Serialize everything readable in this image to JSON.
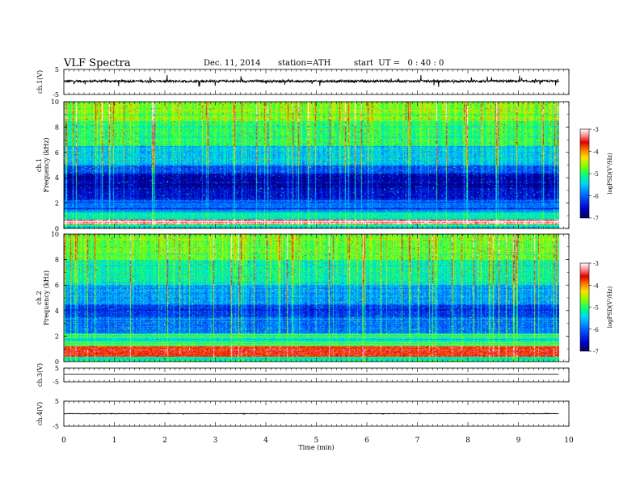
{
  "header": {
    "title": "VLF  Spectra",
    "date": "Dec. 11, 2014",
    "station": "station=ATH",
    "start": "start  UT =   0 : 40 : 0"
  },
  "colors": {
    "spectrum_scale": [
      "#000060",
      "#0000c8",
      "#0050ff",
      "#00b4ff",
      "#00ffd0",
      "#30ff30",
      "#b4ff00",
      "#ffe000",
      "#ff8000",
      "#e00000",
      "#ff9090",
      "#ffffff"
    ]
  },
  "chart_data": [
    {
      "type": "line",
      "panel": "ch1-waveform",
      "ylabel": "ch.1(V)",
      "yticks": [
        "5",
        "-5"
      ],
      "ylim": [
        -5,
        5
      ],
      "xlim": [
        0,
        10
      ],
      "data_end": 9.8,
      "baseline": 0.3,
      "noise_amplitude": 0.9,
      "spike_amplitude": 2.3
    },
    {
      "type": "heatmap",
      "panel": "ch1-spectrogram",
      "ylabel": "ch.1\nFrequency  (kHz)",
      "yticks": [
        "0",
        "2",
        "4",
        "6",
        "8",
        "10"
      ],
      "ylim": [
        0,
        10
      ],
      "xlim": [
        0,
        10
      ],
      "data_end": 9.8,
      "colorbar": {
        "label": "logPSD(V²/Hz)",
        "ticks": [
          "-3",
          "-4",
          "-5",
          "-6",
          "-7"
        ],
        "range": [
          -7,
          -3
        ]
      },
      "bands": [
        {
          "f": [
            0,
            0.3
          ],
          "logpsd": -5.2
        },
        {
          "f": [
            0.3,
            0.7
          ],
          "logpsd": -3.4
        },
        {
          "f": [
            0.7,
            1.3
          ],
          "logpsd": -5.3
        },
        {
          "f": [
            1.3,
            2.2
          ],
          "logpsd": -6.0
        },
        {
          "f": [
            2.2,
            3.0
          ],
          "logpsd": -6.7
        },
        {
          "f": [
            3.0,
            4.3
          ],
          "logpsd": -6.9
        },
        {
          "f": [
            4.3,
            5.0
          ],
          "logpsd": -6.3
        },
        {
          "f": [
            5.0,
            6.5
          ],
          "logpsd": -5.7
        },
        {
          "f": [
            6.5,
            8.5
          ],
          "logpsd": -5.2
        },
        {
          "f": [
            8.5,
            10.0
          ],
          "logpsd": -4.9
        }
      ]
    },
    {
      "type": "heatmap",
      "panel": "ch2-spectrogram",
      "ylabel": "ch.2\nFrequency  (kHz)",
      "yticks": [
        "0",
        "2",
        "4",
        "6",
        "8",
        "10"
      ],
      "ylim": [
        0,
        10
      ],
      "xlim": [
        0,
        10
      ],
      "data_end": 9.8,
      "colorbar": {
        "label": "logPSD(V²/Hz)",
        "ticks": [
          "-3",
          "-4",
          "-5",
          "-6",
          "-7"
        ],
        "range": [
          -7,
          -3
        ]
      },
      "bands": [
        {
          "f": [
            0,
            0.4
          ],
          "logpsd": -5.2
        },
        {
          "f": [
            0.4,
            1.2
          ],
          "logpsd": -3.7
        },
        {
          "f": [
            1.2,
            2.2
          ],
          "logpsd": -5.3
        },
        {
          "f": [
            2.2,
            3.5
          ],
          "logpsd": -6.1
        },
        {
          "f": [
            3.5,
            4.5
          ],
          "logpsd": -6.4
        },
        {
          "f": [
            4.5,
            6.0
          ],
          "logpsd": -5.9
        },
        {
          "f": [
            6.0,
            8.0
          ],
          "logpsd": -5.4
        },
        {
          "f": [
            8.0,
            10.0
          ],
          "logpsd": -5.0
        }
      ]
    },
    {
      "type": "line",
      "panel": "ch3-waveform",
      "ylabel": "ch.3(V)",
      "yticks": [
        "5",
        "-5"
      ],
      "ylim": [
        -5,
        5
      ],
      "xlim": [
        0,
        10
      ],
      "data_end": 9.8,
      "baseline": 0.6,
      "noise_amplitude": 0.1,
      "spike_amplitude": 0.2
    },
    {
      "type": "line",
      "panel": "ch4-waveform",
      "ylabel": "ch.4(V)",
      "yticks": [
        "5",
        "-5"
      ],
      "ylim": [
        -5,
        5
      ],
      "xlim": [
        0,
        10
      ],
      "data_end": 9.8,
      "baseline": 0.0,
      "noise_amplitude": 0.2,
      "spike_amplitude": 0.2
    }
  ],
  "x_axis": {
    "label": "Time  (min)",
    "ticks": [
      "0",
      "1",
      "2",
      "3",
      "4",
      "5",
      "6",
      "7",
      "8",
      "9",
      "10"
    ],
    "range": [
      0,
      10
    ]
  }
}
